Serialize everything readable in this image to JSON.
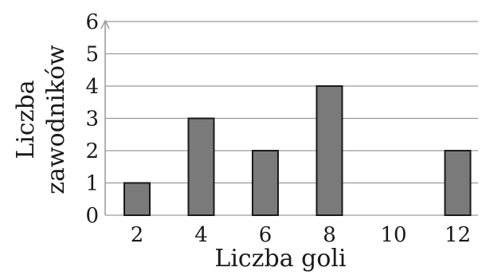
{
  "chart_data": {
    "type": "bar",
    "categories": [
      "2",
      "4",
      "6",
      "8",
      "10",
      "12"
    ],
    "values": [
      1,
      3,
      2,
      4,
      0,
      2
    ],
    "xlabel": "Liczba goli",
    "ylabel_lines": [
      "Liczba",
      "zawodników"
    ],
    "ylim": [
      0,
      6
    ],
    "yticks": [
      "0",
      "1",
      "2",
      "3",
      "4",
      "5",
      "6"
    ],
    "grid": true,
    "legend": "none"
  },
  "colors": {
    "bar_fill": "#7a7a7a",
    "bar_stroke": "#1a1a1a",
    "grid": "#9a9a9a"
  }
}
